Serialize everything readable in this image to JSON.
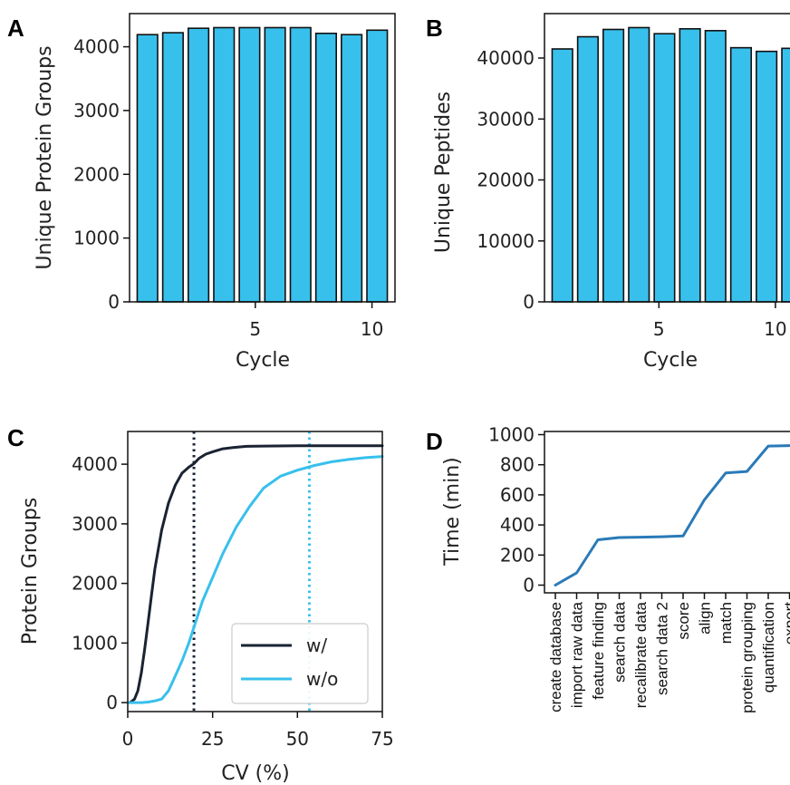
{
  "chart_data": [
    {
      "panel": "A",
      "type": "bar",
      "x": [
        1,
        2,
        3,
        4,
        5,
        6,
        7,
        8,
        9,
        10
      ],
      "values": [
        4190,
        4220,
        4290,
        4300,
        4300,
        4300,
        4300,
        4210,
        4190,
        4260
      ],
      "xlabel": "Cycle",
      "ylabel": "Unique Protein Groups",
      "xlim": [
        0.3,
        10.7
      ],
      "ylim": [
        0,
        4520
      ],
      "xticks": [
        5,
        10
      ],
      "yticks": [
        0,
        1000,
        2000,
        3000,
        4000
      ],
      "bar_color": "#38c0ec",
      "edge_color": "#111111"
    },
    {
      "panel": "B",
      "type": "bar",
      "x": [
        1,
        2,
        3,
        4,
        5,
        6,
        7,
        8,
        9,
        10
      ],
      "values": [
        41500,
        43500,
        44700,
        45000,
        44000,
        44800,
        44500,
        41700,
        41100,
        41600
      ],
      "xlabel": "Cycle",
      "ylabel": "Unique Peptides",
      "xlim": [
        0.3,
        10.7
      ],
      "ylim": [
        0,
        47300
      ],
      "xticks": [
        5,
        10
      ],
      "yticks": [
        0,
        10000,
        20000,
        30000,
        40000
      ],
      "bar_color": "#38c0ec",
      "edge_color": "#111111"
    },
    {
      "panel": "C",
      "type": "line",
      "xlabel": "CV (%)",
      "ylabel": "Protein Groups",
      "xlim": [
        0,
        75
      ],
      "ylim": [
        -150,
        4550
      ],
      "xticks": [
        0,
        25,
        50,
        75
      ],
      "yticks": [
        0,
        1000,
        2000,
        3000,
        4000
      ],
      "series": [
        {
          "name": "w/",
          "color": "#1a2332",
          "x": [
            0.5,
            1,
            2,
            3,
            4,
            5,
            6,
            7,
            8,
            10,
            12,
            14,
            16,
            18,
            19.5,
            21,
            23,
            25,
            28,
            31,
            35,
            40,
            50,
            60,
            75
          ],
          "y": [
            0,
            15,
            60,
            200,
            500,
            900,
            1350,
            1800,
            2250,
            2900,
            3350,
            3650,
            3850,
            3950,
            4010,
            4100,
            4170,
            4210,
            4260,
            4280,
            4300,
            4305,
            4310,
            4310,
            4310
          ]
        },
        {
          "name": "w/o",
          "color": "#38c0ec",
          "x": [
            0.5,
            2,
            4,
            6,
            8,
            10,
            12,
            14,
            16,
            18,
            20,
            22,
            25,
            28,
            32,
            36,
            40,
            45,
            50,
            55,
            60,
            65,
            70,
            75
          ],
          "y": [
            0,
            0,
            0,
            10,
            30,
            60,
            200,
            450,
            700,
            1000,
            1350,
            1700,
            2100,
            2500,
            2950,
            3300,
            3600,
            3800,
            3900,
            3980,
            4040,
            4080,
            4110,
            4130
          ]
        }
      ],
      "vlines": [
        {
          "x": 19.5,
          "color": "#1a2332",
          "style": "dotted"
        },
        {
          "x": 53.5,
          "color": "#38c0ec",
          "style": "dotted"
        }
      ],
      "legend": "lower-right"
    },
    {
      "panel": "D",
      "type": "line",
      "categories": [
        "create database",
        "import raw data",
        "feature finding",
        "search data",
        "recalibrate data",
        "search data 2",
        "score",
        "align",
        "match",
        "protein grouping",
        "quantification",
        "export"
      ],
      "values": [
        0,
        80,
        295,
        310,
        312,
        315,
        320,
        555,
        730,
        740,
        905,
        908
      ],
      "ylabel": "Time (min)",
      "ylim": [
        -50,
        1000
      ],
      "yticks": [
        0,
        200,
        400,
        600,
        800,
        1000
      ],
      "color": "#2a7ab8"
    }
  ],
  "panels": {
    "A": {
      "letter": "A",
      "ylabel": "Unique Protein Groups",
      "xlabel": "Cycle",
      "yticks": [
        "0",
        "1000",
        "2000",
        "3000",
        "4000"
      ],
      "xticks": [
        "5",
        "10"
      ]
    },
    "B": {
      "letter": "B",
      "ylabel": "Unique Peptides",
      "xlabel": "Cycle",
      "yticks": [
        "0",
        "10000",
        "20000",
        "30000",
        "40000"
      ],
      "xticks": [
        "5",
        "10"
      ]
    },
    "C": {
      "letter": "C",
      "ylabel": "Protein Groups",
      "xlabel": "CV (%)",
      "yticks": [
        "0",
        "1000",
        "2000",
        "3000",
        "4000"
      ],
      "xticks": [
        "0",
        "25",
        "50",
        "75"
      ],
      "legend": [
        "w/",
        "w/o"
      ]
    },
    "D": {
      "letter": "D",
      "ylabel": "Time (min)",
      "yticks": [
        "0",
        "200",
        "400",
        "600",
        "800",
        "1000"
      ]
    }
  }
}
